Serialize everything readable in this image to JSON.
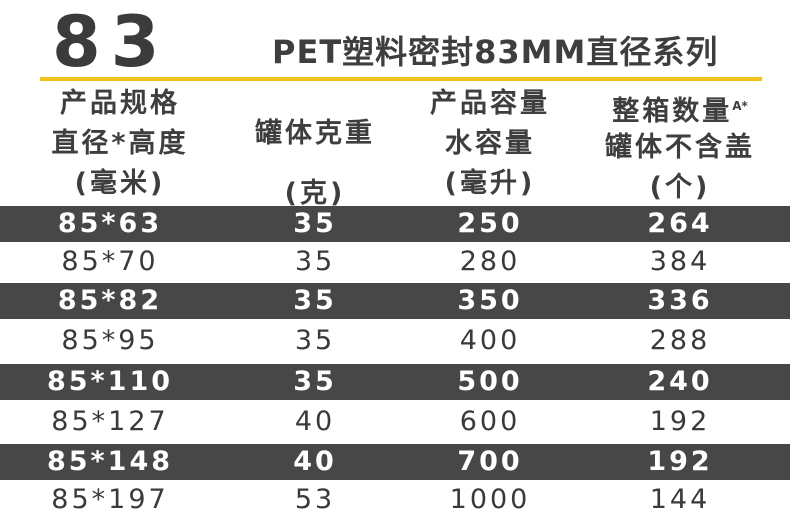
{
  "series_number": "83",
  "title": "PET塑料密封83MM直径系列",
  "headers": {
    "col1": [
      "产品规格",
      "直径*高度",
      "(毫米)"
    ],
    "col2": [
      "罐体克重",
      "(克)"
    ],
    "col3": [
      "产品容量",
      "水容量",
      "(毫升)"
    ],
    "col4_line1": "整箱数量",
    "col4_sup": "A*",
    "col4_rest": [
      "罐体不含盖",
      "(个)"
    ]
  },
  "rows": [
    {
      "spec": "85*63",
      "weight": "35",
      "capacity": "250",
      "qty": "264"
    },
    {
      "spec": "85*70",
      "weight": "35",
      "capacity": "280",
      "qty": "384"
    },
    {
      "spec": "85*82",
      "weight": "35",
      "capacity": "350",
      "qty": "336"
    },
    {
      "spec": "85*95",
      "weight": "35",
      "capacity": "400",
      "qty": "288"
    },
    {
      "spec": "85*110",
      "weight": "35",
      "capacity": "500",
      "qty": "240"
    },
    {
      "spec": "85*127",
      "weight": "40",
      "capacity": "600",
      "qty": "192"
    },
    {
      "spec": "85*148",
      "weight": "40",
      "capacity": "700",
      "qty": "192"
    },
    {
      "spec": "85*197",
      "weight": "53",
      "capacity": "1000",
      "qty": "144"
    }
  ],
  "colors": {
    "accent_line": "#f2c21b",
    "dark_row": "#474747",
    "text": "#3a3a3a"
  }
}
